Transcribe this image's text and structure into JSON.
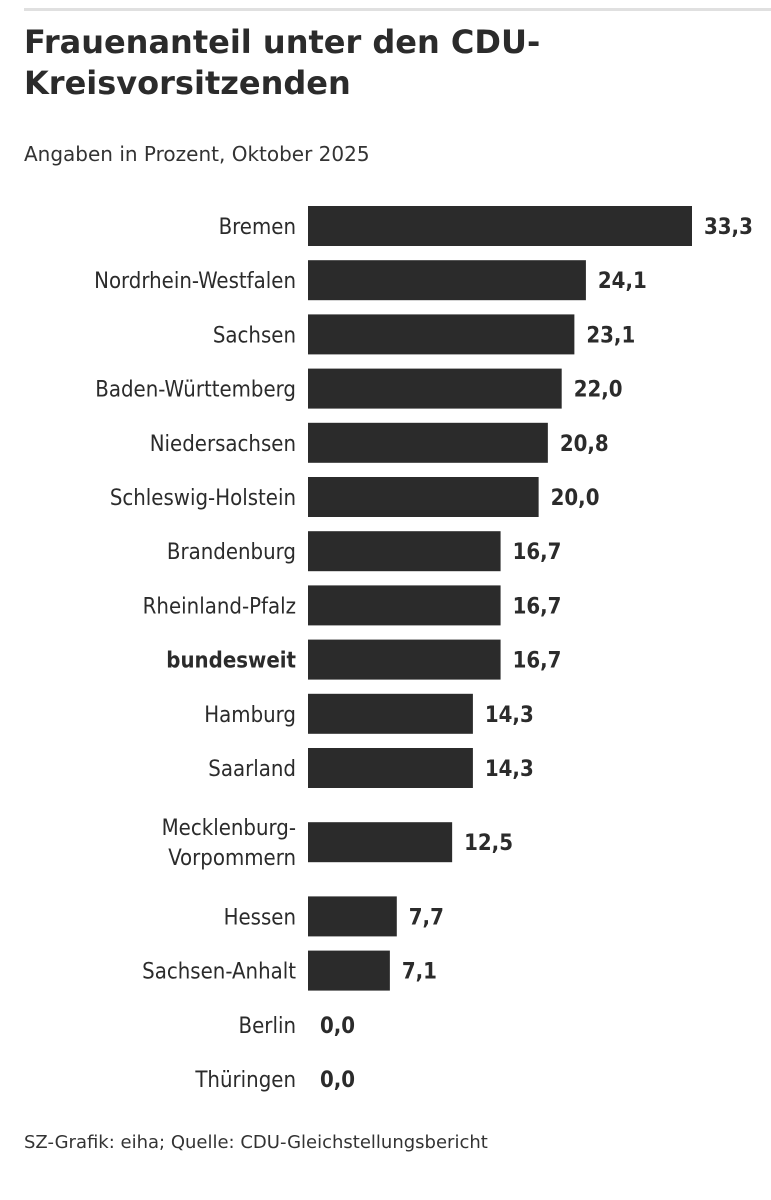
{
  "header": {
    "title": "Frauenanteil unter den CDU-Kreisvorsitzenden",
    "subtitle": "Angaben in Prozent, Oktober 2025"
  },
  "footer": {
    "source": "SZ-Grafik: eiha; Quelle: CDU-Gleichstellungsbericht"
  },
  "chart_data": {
    "type": "bar",
    "orientation": "horizontal",
    "title": "Frauenanteil unter den CDU-Kreisvorsitzenden",
    "subtitle": "Angaben in Prozent, Oktober 2025",
    "categories": [
      [
        "Bremen"
      ],
      [
        "Nordrhein-Westfalen"
      ],
      [
        "Sachsen"
      ],
      [
        "Baden-Württemberg"
      ],
      [
        "Niedersachsen"
      ],
      [
        "Schleswig-Holstein"
      ],
      [
        "Brandenburg"
      ],
      [
        "Rheinland-Pfalz"
      ],
      [
        "bundesweit"
      ],
      [
        "Hamburg"
      ],
      [
        "Saarland"
      ],
      [
        "Mecklenburg-",
        "Vorpommern"
      ],
      [
        "Hessen"
      ],
      [
        "Sachsen-Anhalt"
      ],
      [
        "Berlin"
      ],
      [
        "Thüringen"
      ]
    ],
    "values": [
      33.3,
      24.1,
      23.1,
      22.0,
      20.8,
      20.0,
      16.7,
      16.7,
      16.7,
      14.3,
      14.3,
      12.5,
      7.7,
      7.1,
      0.0,
      0.0
    ],
    "value_labels": [
      "33,3",
      "24,1",
      "23,1",
      "22,0",
      "20,8",
      "20,0",
      "16,7",
      "16,7",
      "16,7",
      "14,3",
      "14,3",
      "12,5",
      "7,7",
      "7,1",
      "0,0",
      "0,0"
    ],
    "highlight_category": "bundesweit",
    "xlim": [
      0,
      33.3
    ],
    "grid": false,
    "bar_color": "#2b2b2b",
    "text_color": "#2b2b2b"
  }
}
